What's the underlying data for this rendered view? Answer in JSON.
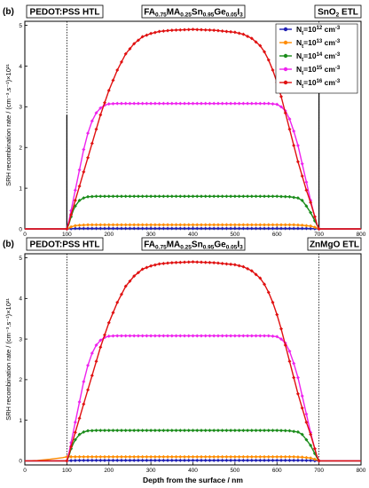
{
  "chart_data": [
    {
      "type": "line",
      "panel_label": "(b)",
      "x_unit": "nm",
      "y_unit": "10^21 cm^-3 s^-1",
      "labels": {
        "left": "PEDOT:PSS HTL",
        "middle": "FA0.75MA0.25Sn0.95Ge0.05I3",
        "right": "SnO2 ETL"
      },
      "ylabel": "SRH recombination rate / (cm⁻³.s⁻¹)×10²¹",
      "xlabel": "",
      "xlim": [
        0,
        800
      ],
      "ylim": [
        0,
        5.1
      ],
      "xticks": [
        "0",
        "100",
        "200",
        "300",
        "400",
        "500",
        "600",
        "700",
        "800"
      ],
      "yticks": [
        "0",
        "1",
        "2",
        "3",
        "4",
        "5"
      ],
      "vlines": [
        100,
        700
      ],
      "legend_position": "top-right",
      "series": [
        {
          "name_base": "N",
          "name_sub": "t",
          "name_mid": "=10",
          "name_exp": "12",
          "name_tail": " cm",
          "name_tailexp": "-3",
          "color": "#1f1fb4",
          "x": [
            0,
            100,
            105,
            110,
            120,
            130,
            150,
            200,
            400,
            600,
            640,
            660,
            680,
            690,
            695,
            700,
            800
          ],
          "y": [
            0,
            0,
            0.002,
            0.006,
            0.01,
            0.012,
            0.012,
            0.012,
            0.012,
            0.012,
            0.012,
            0.011,
            0.009,
            0.005,
            0.002,
            0,
            0
          ]
        },
        {
          "name_base": "N",
          "name_sub": "t",
          "name_mid": "=10",
          "name_exp": "13",
          "name_tail": " cm",
          "name_tailexp": "-3",
          "color": "#ff8c00",
          "x": [
            0,
            100,
            105,
            110,
            120,
            130,
            150,
            200,
            400,
            600,
            640,
            660,
            680,
            690,
            695,
            700,
            800
          ],
          "y": [
            0,
            0,
            0.02,
            0.05,
            0.08,
            0.09,
            0.1,
            0.1,
            0.1,
            0.1,
            0.1,
            0.09,
            0.07,
            0.04,
            0.02,
            0,
            0
          ]
        },
        {
          "name_base": "N",
          "name_sub": "t",
          "name_mid": "=10",
          "name_exp": "14",
          "name_tail": " cm",
          "name_tailexp": "-3",
          "color": "#1a8c1a",
          "x": [
            0,
            100,
            105,
            110,
            115,
            120,
            130,
            140,
            150,
            170,
            200,
            400,
            600,
            630,
            650,
            660,
            670,
            680,
            690,
            695,
            700,
            800
          ],
          "y": [
            0,
            0,
            0.12,
            0.3,
            0.45,
            0.56,
            0.7,
            0.76,
            0.79,
            0.8,
            0.8,
            0.8,
            0.8,
            0.79,
            0.76,
            0.7,
            0.56,
            0.4,
            0.2,
            0.1,
            0,
            0
          ]
        },
        {
          "name_base": "N",
          "name_sub": "t",
          "name_mid": "=10",
          "name_exp": "15",
          "name_tail": " cm",
          "name_tailexp": "-3",
          "color": "#ee22ee",
          "x": [
            0,
            100,
            105,
            110,
            120,
            130,
            140,
            150,
            160,
            170,
            180,
            190,
            200,
            215,
            300,
            400,
            500,
            580,
            600,
            610,
            620,
            630,
            640,
            650,
            660,
            670,
            680,
            690,
            695,
            700,
            800
          ],
          "y": [
            0,
            0,
            0.2,
            0.45,
            0.95,
            1.45,
            1.95,
            2.35,
            2.65,
            2.85,
            2.97,
            3.04,
            3.07,
            3.08,
            3.08,
            3.08,
            3.08,
            3.08,
            3.06,
            3.0,
            2.9,
            2.7,
            2.4,
            2.05,
            1.6,
            1.15,
            0.7,
            0.3,
            0.12,
            0,
            0
          ]
        },
        {
          "name_base": "N",
          "name_sub": "t",
          "name_mid": "=10",
          "name_exp": "16",
          "name_tail": " cm",
          "name_tailexp": "-3",
          "color": "#e01010",
          "x": [
            0,
            100,
            105,
            110,
            120,
            130,
            140,
            150,
            160,
            170,
            180,
            190,
            200,
            220,
            240,
            260,
            280,
            300,
            320,
            350,
            400,
            450,
            500,
            520,
            540,
            560,
            570,
            580,
            590,
            600,
            610,
            620,
            630,
            640,
            650,
            660,
            670,
            680,
            690,
            695,
            700,
            800
          ],
          "y": [
            0,
            0,
            0.15,
            0.35,
            0.7,
            1.05,
            1.4,
            1.75,
            2.1,
            2.45,
            2.8,
            3.1,
            3.4,
            3.9,
            4.3,
            4.55,
            4.72,
            4.8,
            4.85,
            4.88,
            4.9,
            4.88,
            4.83,
            4.78,
            4.68,
            4.5,
            4.35,
            4.15,
            3.9,
            3.6,
            3.25,
            2.85,
            2.45,
            2.05,
            1.65,
            1.3,
            0.95,
            0.65,
            0.3,
            0.12,
            0,
            0
          ]
        }
      ]
    },
    {
      "type": "line",
      "panel_label": "(b)",
      "x_unit": "nm",
      "y_unit": "10^21 cm^-3 s^-1",
      "labels": {
        "left": "PEDOT:PSS HTL",
        "middle": "FA0.75MA0.25Sn0.95Ge0.05I3",
        "right": "ZnMgO ETL"
      },
      "ylabel": "SRH recombination rate / (cm⁻³.s⁻¹)×10²¹",
      "xlabel": "Depth from the surface / nm",
      "xlim": [
        0,
        800
      ],
      "ylim": [
        -0.1,
        5.1
      ],
      "xticks": [
        "0",
        "100",
        "200",
        "300",
        "400",
        "500",
        "600",
        "700",
        "800"
      ],
      "yticks": [
        "0",
        "1",
        "2",
        "3",
        "4",
        "5"
      ],
      "vlines": [
        100,
        700
      ],
      "series": [
        {
          "color": "#1f1fb4",
          "x": [
            0,
            100,
            105,
            110,
            120,
            130,
            150,
            200,
            400,
            600,
            640,
            660,
            680,
            690,
            695,
            700,
            800
          ],
          "y": [
            0,
            0,
            0.002,
            0.006,
            0.01,
            0.012,
            0.012,
            0.012,
            0.012,
            0.012,
            0.012,
            0.011,
            0.009,
            0.005,
            0.002,
            0,
            0
          ]
        },
        {
          "color": "#ff8c00",
          "x": [
            0,
            30,
            60,
            90,
            100,
            110,
            120,
            130,
            150,
            200,
            400,
            600,
            640,
            660,
            680,
            690,
            695,
            700,
            800
          ],
          "y": [
            0,
            0.01,
            0.04,
            0.08,
            0.1,
            0.1,
            0.1,
            0.1,
            0.1,
            0.1,
            0.1,
            0.1,
            0.1,
            0.09,
            0.07,
            0.04,
            0.02,
            0,
            0
          ]
        },
        {
          "color": "#1a8c1a",
          "x": [
            0,
            100,
            105,
            110,
            115,
            120,
            130,
            140,
            150,
            170,
            200,
            400,
            600,
            630,
            650,
            660,
            670,
            680,
            690,
            695,
            700,
            800
          ],
          "y": [
            0,
            0,
            0.12,
            0.3,
            0.42,
            0.52,
            0.65,
            0.71,
            0.74,
            0.75,
            0.75,
            0.75,
            0.75,
            0.74,
            0.71,
            0.65,
            0.52,
            0.38,
            0.18,
            0.08,
            0,
            0
          ]
        },
        {
          "color": "#ee22ee",
          "x": [
            0,
            100,
            105,
            110,
            120,
            130,
            140,
            150,
            160,
            170,
            180,
            190,
            200,
            215,
            300,
            400,
            500,
            580,
            600,
            610,
            620,
            630,
            640,
            650,
            660,
            670,
            680,
            690,
            695,
            700,
            800
          ],
          "y": [
            0,
            0,
            0.2,
            0.45,
            0.95,
            1.45,
            1.95,
            2.35,
            2.65,
            2.85,
            2.97,
            3.04,
            3.07,
            3.08,
            3.08,
            3.08,
            3.08,
            3.08,
            3.06,
            3.0,
            2.9,
            2.7,
            2.4,
            2.05,
            1.6,
            1.15,
            0.7,
            0.3,
            0.12,
            0,
            0
          ]
        },
        {
          "color": "#e01010",
          "x": [
            0,
            100,
            105,
            110,
            120,
            130,
            140,
            150,
            160,
            170,
            180,
            190,
            200,
            220,
            240,
            260,
            280,
            300,
            320,
            350,
            400,
            450,
            500,
            520,
            540,
            560,
            570,
            580,
            590,
            600,
            610,
            620,
            630,
            640,
            650,
            660,
            670,
            680,
            690,
            695,
            700,
            800
          ],
          "y": [
            0,
            0,
            0.15,
            0.35,
            0.7,
            1.05,
            1.4,
            1.75,
            2.1,
            2.45,
            2.8,
            3.1,
            3.4,
            3.9,
            4.3,
            4.55,
            4.72,
            4.8,
            4.85,
            4.88,
            4.9,
            4.88,
            4.83,
            4.78,
            4.68,
            4.5,
            4.35,
            4.15,
            3.9,
            3.6,
            3.25,
            2.85,
            2.45,
            2.05,
            1.65,
            1.3,
            0.95,
            0.65,
            0.3,
            0.12,
            0,
            0
          ]
        }
      ]
    }
  ]
}
